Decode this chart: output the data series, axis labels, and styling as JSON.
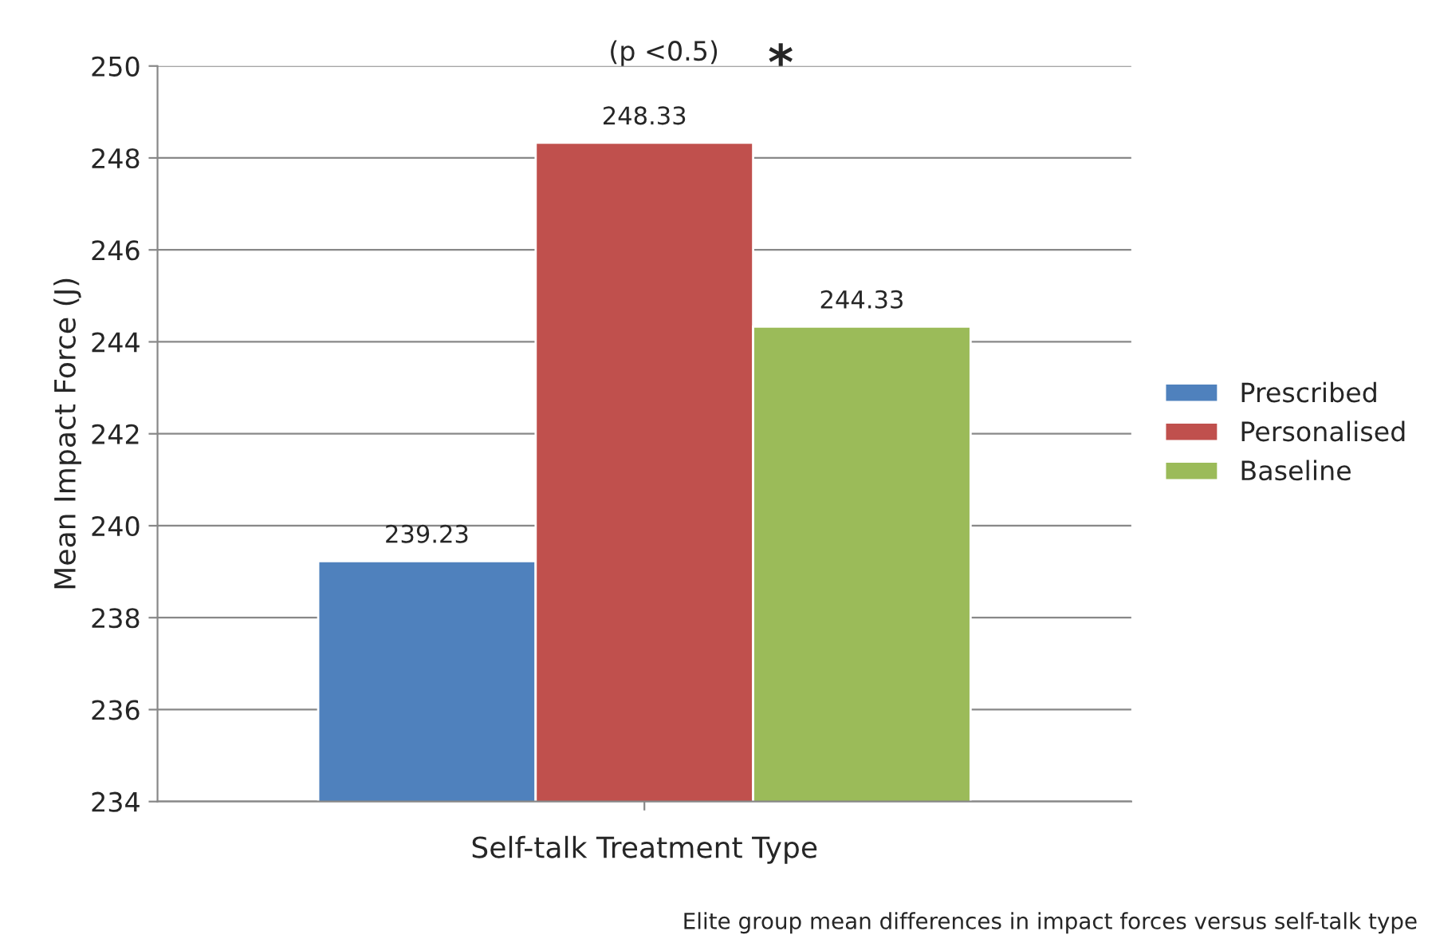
{
  "chart_data": {
    "type": "bar",
    "xlabel": "Self-talk Treatment Type",
    "ylabel": "Mean Impact Force (J)",
    "categories": [
      null
    ],
    "series": [
      {
        "name": "Prescribed",
        "color": "#4f81bd",
        "values": [
          239.23
        ]
      },
      {
        "name": "Personalised",
        "color": "#c0504d",
        "values": [
          248.33
        ]
      },
      {
        "name": "Baseline",
        "color": "#9bbb59",
        "values": [
          244.33
        ]
      }
    ],
    "ylim": [
      234,
      250
    ],
    "yticks": [
      234,
      236,
      238,
      240,
      242,
      244,
      246,
      248,
      250
    ],
    "grid": "y",
    "legend": "right",
    "data_labels": true,
    "annotations": [
      "(p <0.5)",
      "*",
      "Elite group mean differences in impact forces versus self-talk type"
    ]
  }
}
